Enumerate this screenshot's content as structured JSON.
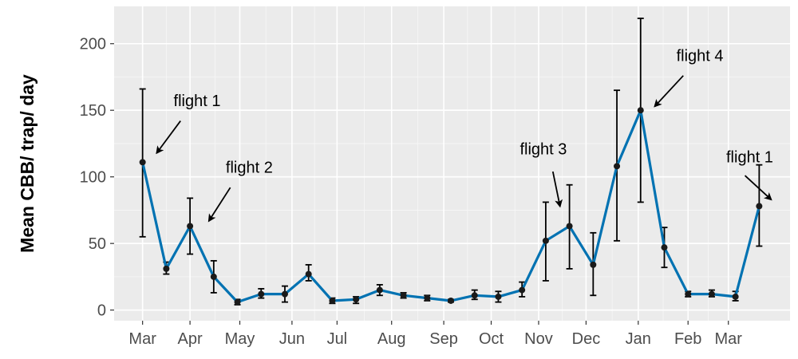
{
  "chart_data": {
    "type": "line",
    "title": "",
    "xlabel": "",
    "ylabel": "Mean CBB/ trap/ day",
    "ylim": [
      -8,
      228
    ],
    "yticks": [
      0,
      50,
      100,
      150,
      200
    ],
    "grid": true,
    "x_ticks": [
      {
        "label": "Mar",
        "x": 0
      },
      {
        "label": "Apr",
        "x": 2
      },
      {
        "label": "May",
        "x": 4.1
      },
      {
        "label": "Jun",
        "x": 6.3
      },
      {
        "label": "Jul",
        "x": 8.2
      },
      {
        "label": "Aug",
        "x": 10.5
      },
      {
        "label": "Sep",
        "x": 12.7
      },
      {
        "label": "Oct",
        "x": 14.7
      },
      {
        "label": "Nov",
        "x": 16.7
      },
      {
        "label": "Dec",
        "x": 18.7
      },
      {
        "label": "Jan",
        "x": 20.9
      },
      {
        "label": "Feb",
        "x": 23
      },
      {
        "label": "Mar",
        "x": 24.7
      }
    ],
    "series": [
      {
        "color": "#0072b2",
        "points": [
          {
            "x": 0,
            "y": 111,
            "lo": 55,
            "hi": 166
          },
          {
            "x": 1,
            "y": 31,
            "lo": 27,
            "hi": 36
          },
          {
            "x": 2,
            "y": 63,
            "lo": 42,
            "hi": 84
          },
          {
            "x": 3,
            "y": 25,
            "lo": 13,
            "hi": 37
          },
          {
            "x": 4,
            "y": 6,
            "lo": 4,
            "hi": 8
          },
          {
            "x": 5,
            "y": 12,
            "lo": 9,
            "hi": 16
          },
          {
            "x": 6,
            "y": 12,
            "lo": 6,
            "hi": 18
          },
          {
            "x": 7,
            "y": 27,
            "lo": 22,
            "hi": 34
          },
          {
            "x": 8,
            "y": 7,
            "lo": 5,
            "hi": 9
          },
          {
            "x": 9,
            "y": 8,
            "lo": 5,
            "hi": 10
          },
          {
            "x": 10,
            "y": 15,
            "lo": 11,
            "hi": 19
          },
          {
            "x": 11,
            "y": 11,
            "lo": 9,
            "hi": 13
          },
          {
            "x": 12,
            "y": 9,
            "lo": 7,
            "hi": 11
          },
          {
            "x": 13,
            "y": 7,
            "lo": 6,
            "hi": 8
          },
          {
            "x": 14,
            "y": 11,
            "lo": 8,
            "hi": 15
          },
          {
            "x": 15,
            "y": 10,
            "lo": 6,
            "hi": 14
          },
          {
            "x": 16,
            "y": 15,
            "lo": 10,
            "hi": 21
          },
          {
            "x": 17,
            "y": 52,
            "lo": 22,
            "hi": 81
          },
          {
            "x": 18,
            "y": 63,
            "lo": 31,
            "hi": 94
          },
          {
            "x": 19,
            "y": 34,
            "lo": 11,
            "hi": 58
          },
          {
            "x": 20,
            "y": 108,
            "lo": 52,
            "hi": 165
          },
          {
            "x": 21,
            "y": 150,
            "lo": 81,
            "hi": 219
          },
          {
            "x": 22,
            "y": 47,
            "lo": 32,
            "hi": 62
          },
          {
            "x": 23,
            "y": 12,
            "lo": 10,
            "hi": 14
          },
          {
            "x": 24,
            "y": 12,
            "lo": 10,
            "hi": 15
          },
          {
            "x": 25,
            "y": 10,
            "lo": 7,
            "hi": 14
          },
          {
            "x": 26,
            "y": 78,
            "lo": 48,
            "hi": 109
          }
        ]
      }
    ],
    "annotations": [
      {
        "text": "flight 1",
        "x": 2.3,
        "y": 153,
        "arrow_from": [
          1.6,
          142
        ],
        "arrow_to": [
          0.6,
          118
        ]
      },
      {
        "text": "flight 2",
        "x": 4.5,
        "y": 103,
        "arrow_from": [
          3.7,
          92
        ],
        "arrow_to": [
          2.8,
          67
        ]
      },
      {
        "text": "flight 3",
        "x": 16.9,
        "y": 117,
        "arrow_from": [
          17.3,
          104
        ],
        "arrow_to": [
          17.6,
          78
        ]
      },
      {
        "text": "flight 4",
        "x": 23.5,
        "y": 187,
        "arrow_from": [
          22.8,
          176
        ],
        "arrow_to": [
          21.6,
          153
        ]
      },
      {
        "text": "flight 1",
        "x": 25.6,
        "y": 111,
        "arrow_from": [
          25.4,
          101
        ],
        "arrow_to": [
          26.5,
          83
        ]
      }
    ]
  }
}
